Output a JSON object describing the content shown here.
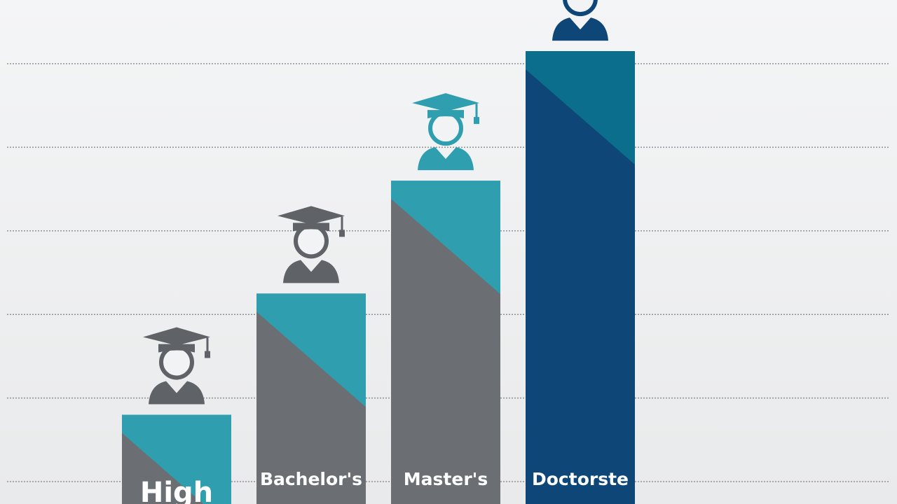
{
  "chart_data": {
    "type": "bar",
    "categories": [
      "High",
      "Bachelor's",
      "Master's",
      "Doctorste"
    ],
    "values": [
      0.8,
      2.25,
      3.6,
      5.15
    ],
    "colors": [
      "#6b6f74",
      "#6b6f74",
      "#6b6f74",
      "#0d4677"
    ],
    "accent_colors": [
      "#2f9fb0",
      "#2f9fb0",
      "#2f9fb0",
      "#0b6e8c"
    ],
    "icon_colors": [
      "#5f6368",
      "#5f6368",
      "#2f9fb0",
      "#0d4677"
    ],
    "ylim": [
      0,
      6
    ],
    "yticks": [
      0,
      1,
      2,
      3,
      4,
      5
    ],
    "grid": true
  }
}
